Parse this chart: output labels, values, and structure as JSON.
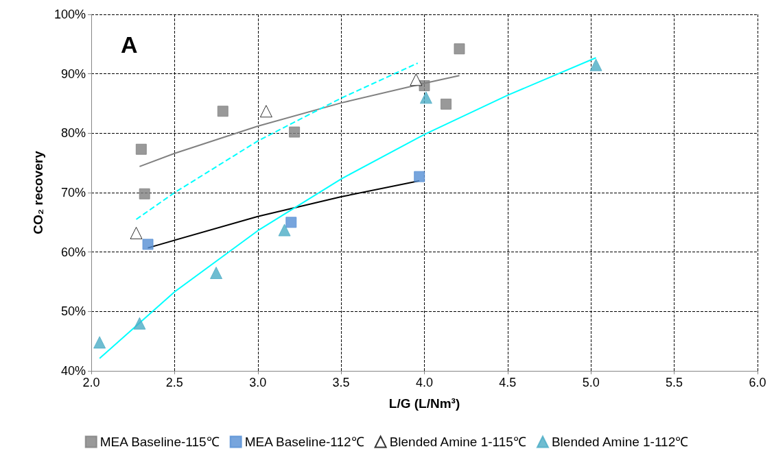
{
  "chart_data": {
    "type": "scatter",
    "xlabel": "L/G (L/Nm³)",
    "ylabel": "CO₂ recovery",
    "annotations": [
      "A"
    ],
    "xlim": [
      2,
      6
    ],
    "xticks": [
      {
        "value": 2,
        "label": "2.0"
      },
      {
        "value": 2.5,
        "label": "2.5"
      },
      {
        "value": 3,
        "label": "3.0"
      },
      {
        "value": 3.5,
        "label": "3.5"
      },
      {
        "value": 4,
        "label": "4.0"
      },
      {
        "value": 4.5,
        "label": "4.5"
      },
      {
        "value": 5,
        "label": "5.0"
      },
      {
        "value": 5.5,
        "label": "5.5"
      },
      {
        "value": 6,
        "label": "6.0"
      }
    ],
    "ylim": [
      40,
      100
    ],
    "yticks": [
      {
        "value": 40,
        "label": "40%"
      },
      {
        "value": 50,
        "label": "50%"
      },
      {
        "value": 60,
        "label": "60%"
      },
      {
        "value": 70,
        "label": "70%"
      },
      {
        "value": 80,
        "label": "80%"
      },
      {
        "value": 90,
        "label": "90%"
      },
      {
        "value": 100,
        "label": "100%"
      }
    ],
    "grid": true,
    "legend": "bottom",
    "series": [
      {
        "name": "MEA Baseline-115℃",
        "marker": "square",
        "color": "#808080",
        "x": [
          2.3,
          2.32,
          2.79,
          3.22,
          4.0,
          4.13,
          4.21
        ],
        "values": [
          77.3,
          69.8,
          83.7,
          80.2,
          88.0,
          84.9,
          94.2
        ]
      },
      {
        "name": "MEA Baseline-112℃",
        "marker": "square",
        "color": "#558ed5",
        "x": [
          2.34,
          3.2,
          3.97
        ],
        "values": [
          61.3,
          65.0,
          72.7
        ]
      },
      {
        "name": "Blended Amine 1-115℃",
        "marker": "triangle",
        "color": "#ffffff",
        "x": [
          2.27,
          3.05,
          3.95
        ],
        "values": [
          63.2,
          83.7,
          89.0
        ]
      },
      {
        "name": "Blended Amine 1-112℃",
        "marker": "triangle",
        "color": "#4bacc6",
        "x": [
          2.05,
          2.29,
          2.75,
          3.16,
          4.01,
          5.03
        ],
        "values": [
          44.8,
          48.0,
          56.5,
          63.7,
          86.0,
          91.5
        ]
      },
      {
        "type": "line",
        "line_style": "solid",
        "color": "#808080",
        "x": [
          2.29,
          2.5,
          3.0,
          3.5,
          4.0,
          4.21
        ],
        "values": [
          74.4,
          76.6,
          81.2,
          85.1,
          88.4,
          89.7
        ]
      },
      {
        "type": "line",
        "line_style": "solid",
        "color": "#000000",
        "x": [
          2.34,
          3.0,
          3.5,
          3.97
        ],
        "values": [
          60.7,
          66.0,
          69.3,
          72.0
        ]
      },
      {
        "type": "line",
        "line_style": "dashed",
        "color": "#00ffff",
        "x": [
          2.27,
          2.5,
          3.0,
          3.5,
          3.96
        ],
        "values": [
          65.5,
          70.0,
          78.7,
          85.9,
          91.8
        ]
      },
      {
        "type": "line",
        "line_style": "solid",
        "color": "#00ffff",
        "x": [
          2.05,
          2.5,
          3.0,
          3.5,
          4.0,
          4.5,
          5.03
        ],
        "values": [
          42.1,
          53.3,
          63.6,
          72.3,
          79.8,
          86.4,
          92.7
        ]
      }
    ]
  }
}
